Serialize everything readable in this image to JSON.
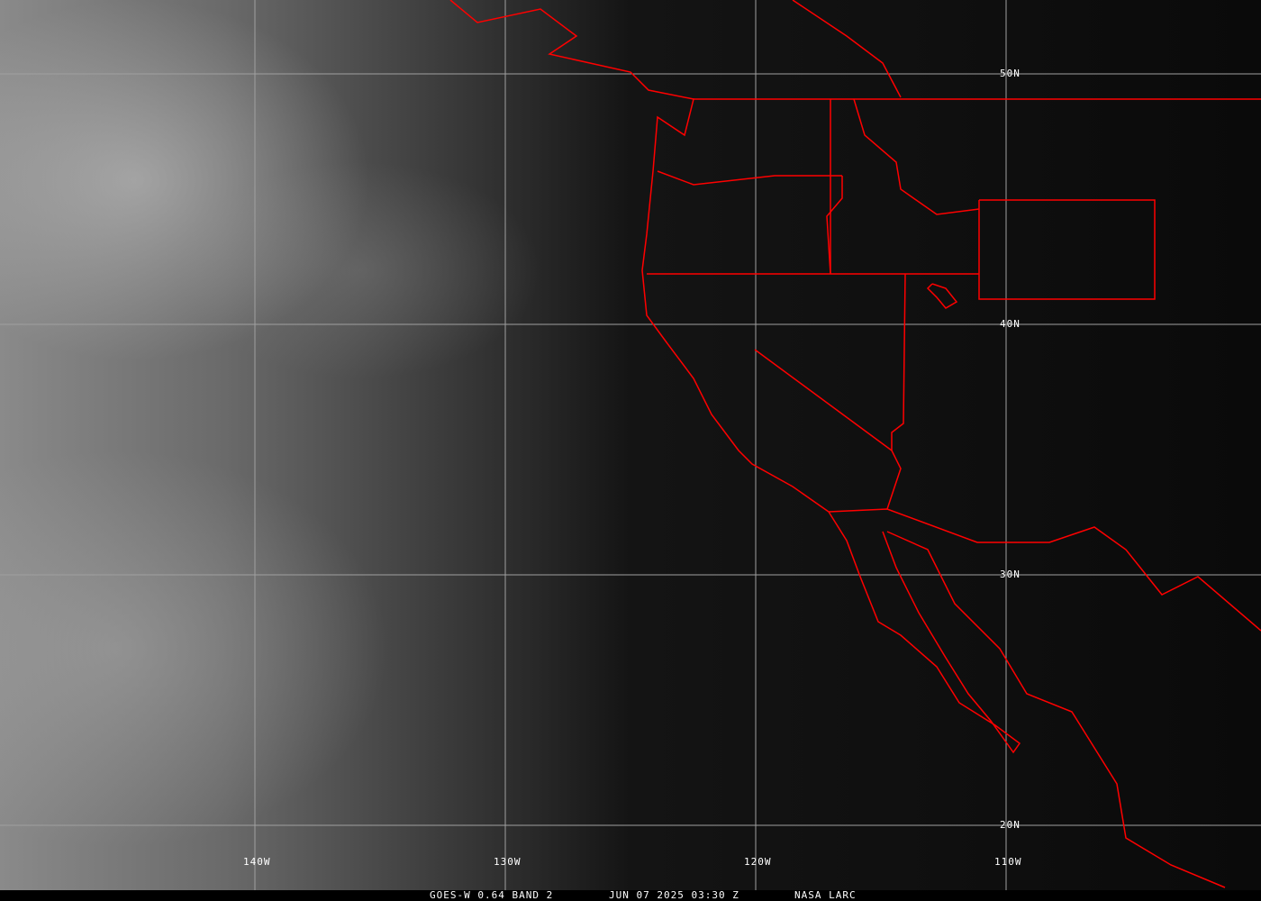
{
  "map": {
    "colors": {
      "borders": "#ff0000",
      "grid": "#a0a0a0",
      "labels": "#ffffff"
    },
    "lat_labels": [
      "50N",
      "40N",
      "30N",
      "20N"
    ],
    "lon_labels": [
      "140W",
      "130W",
      "120W",
      "110W"
    ]
  },
  "caption": {
    "product": "GOES-W 0.64 BAND 2",
    "datetime": "JUN 07 2025 03:30 Z",
    "source": "NASA LARC"
  }
}
